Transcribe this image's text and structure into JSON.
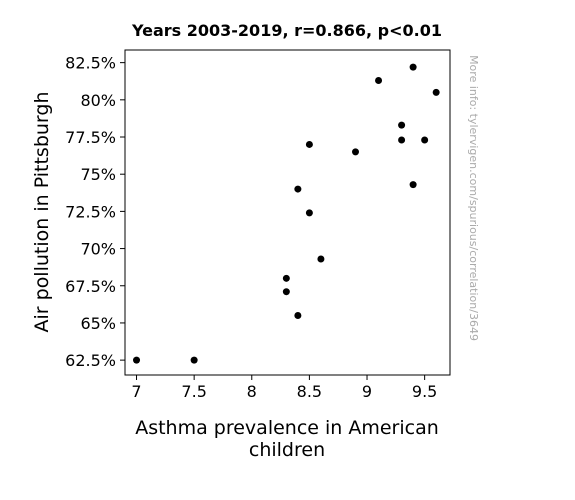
{
  "chart_data": {
    "type": "scatter",
    "title": "Years 2003-2019, r=0.866, p<0.01",
    "xlabel_lines": [
      "Asthma prevalence in American",
      "children"
    ],
    "ylabel": "Air pollution in Pittsburgh",
    "watermark": "More info: tylervigen.com/spurious/correlation/3649",
    "xlim": [
      6.9,
      9.72
    ],
    "ylim": [
      61.5,
      83.35
    ],
    "x_ticks": [
      {
        "value": 7,
        "label": "7"
      },
      {
        "value": 7.5,
        "label": "7.5"
      },
      {
        "value": 8,
        "label": "8"
      },
      {
        "value": 8.5,
        "label": "8.5"
      },
      {
        "value": 9,
        "label": "9"
      },
      {
        "value": 9.5,
        "label": "9.5"
      }
    ],
    "y_ticks": [
      {
        "value": 62.5,
        "label": "62.5%"
      },
      {
        "value": 65,
        "label": "65%"
      },
      {
        "value": 67.5,
        "label": "67.5%"
      },
      {
        "value": 70,
        "label": "70%"
      },
      {
        "value": 72.5,
        "label": "72.5%"
      },
      {
        "value": 75,
        "label": "75%"
      },
      {
        "value": 77.5,
        "label": "77.5%"
      },
      {
        "value": 80,
        "label": "80%"
      },
      {
        "value": 82.5,
        "label": "82.5%"
      }
    ],
    "points": [
      {
        "x": 7.0,
        "y": 62.5
      },
      {
        "x": 7.5,
        "y": 62.5
      },
      {
        "x": 8.3,
        "y": 68.0
      },
      {
        "x": 8.3,
        "y": 67.1
      },
      {
        "x": 8.4,
        "y": 65.5
      },
      {
        "x": 8.4,
        "y": 74.0
      },
      {
        "x": 8.5,
        "y": 77.0
      },
      {
        "x": 8.5,
        "y": 72.4
      },
      {
        "x": 8.6,
        "y": 69.3
      },
      {
        "x": 8.9,
        "y": 76.5
      },
      {
        "x": 9.1,
        "y": 81.3
      },
      {
        "x": 9.3,
        "y": 78.3
      },
      {
        "x": 9.3,
        "y": 77.3
      },
      {
        "x": 9.4,
        "y": 82.2
      },
      {
        "x": 9.4,
        "y": 74.3
      },
      {
        "x": 9.5,
        "y": 77.3
      },
      {
        "x": 9.6,
        "y": 80.5
      }
    ],
    "grid": false,
    "point_color": "#000000"
  }
}
